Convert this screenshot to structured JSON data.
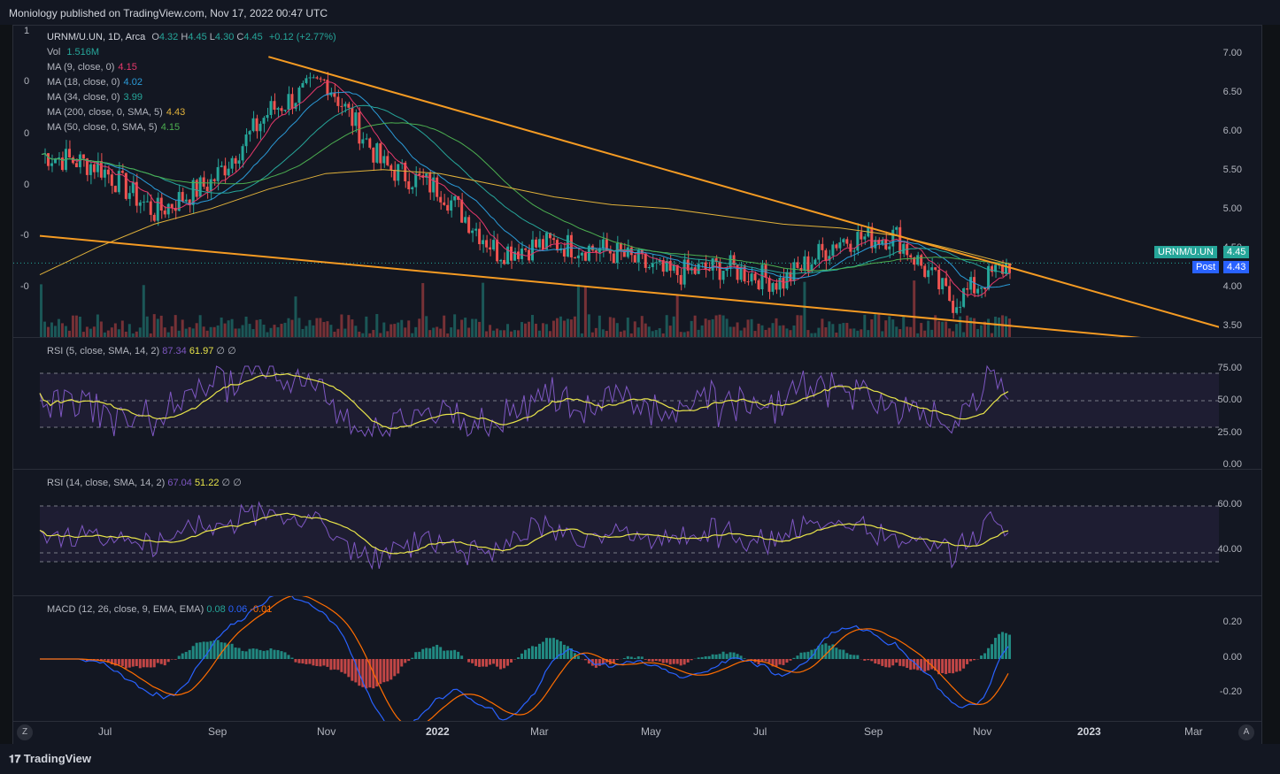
{
  "header": {
    "published": "Moniology published on TradingView.com, Nov 17, 2022 00:47 UTC"
  },
  "main": {
    "symbol_line": {
      "symbol": "URNM/U.UN, 1D, Arca",
      "o_label": "O",
      "o": "4.32",
      "h_label": "H",
      "h": "4.45",
      "l_label": "L",
      "l": "4.30",
      "c_label": "C",
      "c": "4.45",
      "change": "+0.12 (+2.77%)"
    },
    "vol": {
      "label": "Vol",
      "value": "1.516M"
    },
    "ma": [
      {
        "label": "MA (9, close, 0)",
        "value": "4.15",
        "color": "#e5386b"
      },
      {
        "label": "MA (18, close, 0)",
        "value": "4.02",
        "color": "#2b9bd8"
      },
      {
        "label": "MA (34, close, 0)",
        "value": "3.99",
        "color": "#26a69a"
      },
      {
        "label": "MA (200, close, 0, SMA, 5)",
        "value": "4.43",
        "color": "#e0b13a"
      },
      {
        "label": "MA (50, close, 0, SMA, 5)",
        "value": "4.15",
        "color": "#4caf50"
      }
    ],
    "price_ticks": [
      "7.00",
      "6.50",
      "6.00",
      "5.50",
      "5.00",
      "4.50",
      "4.00",
      "3.50"
    ],
    "left_labels": [
      "1",
      "0",
      "0",
      "0",
      "-0",
      "-0"
    ],
    "price_badge": {
      "symbol": "URNM/U.UN",
      "value": "4.45",
      "post_label": "Post",
      "post_value": "4.43"
    }
  },
  "rsi5": {
    "label": "RSI (5, close, SMA, 14, 2)",
    "v1": "87.34",
    "v2": "61.97",
    "v3": "∅",
    "v4": "∅",
    "ticks": [
      "75.00",
      "50.00",
      "25.00",
      "0.00"
    ]
  },
  "rsi14": {
    "label": "RSI (14, close, SMA, 14, 2)",
    "v1": "67.04",
    "v2": "51.22",
    "v3": "∅",
    "v4": "∅",
    "ticks": [
      "60.00",
      "40.00"
    ]
  },
  "macd": {
    "label": "MACD (12, 26, close, 9, EMA, EMA)",
    "v1": "0.08",
    "v2": "0.06",
    "v3": "-0.01",
    "ticks": [
      "0.20",
      "0.00",
      "-0.20"
    ]
  },
  "time_axis": [
    "Jul",
    "Sep",
    "Nov",
    "2022",
    "Mar",
    "May",
    "Jul",
    "Sep",
    "Nov",
    "2023",
    "Mar"
  ],
  "buttons": {
    "left": "Z",
    "right": "A"
  },
  "footer": {
    "brand": "TradingView"
  },
  "colors": {
    "up": "#26a69a",
    "down": "#ef5350",
    "trendline": "#f59b23",
    "rsi": "#7e57c2",
    "rsi_signal": "#e8e44a",
    "macd": "#2962ff",
    "signal": "#ff6d00",
    "bg": "#131722"
  },
  "chart_data": [
    {
      "type": "line",
      "title": "URNM/U.UN, 1D, Arca",
      "x": [
        "2021-06",
        "2021-07",
        "2021-08",
        "2021-09",
        "2021-10",
        "2021-11",
        "2021-12",
        "2022-01",
        "2022-02",
        "2022-03",
        "2022-04",
        "2022-05",
        "2022-06",
        "2022-07",
        "2022-08",
        "2022-09",
        "2022-10",
        "2022-11"
      ],
      "series": [
        {
          "name": "URNM/U.UN",
          "values": [
            5.85,
            5.7,
            5.1,
            5.5,
            6.4,
            6.8,
            5.7,
            5.4,
            4.6,
            4.7,
            4.6,
            4.3,
            4.4,
            4.2,
            4.75,
            4.8,
            3.95,
            4.45
          ]
        },
        {
          "name": "MA (200, close, 0, SMA, 5)",
          "values": [
            4.3,
            4.65,
            4.95,
            5.15,
            5.4,
            5.6,
            5.65,
            5.6,
            5.45,
            5.3,
            5.2,
            5.15,
            5.05,
            4.95,
            4.9,
            4.8,
            4.62,
            4.43
          ]
        }
      ],
      "ylim": [
        3.4,
        7.2
      ],
      "trendlines": [
        {
          "label": "upper",
          "from": [
            "2021-10",
            7.1
          ],
          "to": [
            "2023-03",
            3.55
          ]
        },
        {
          "label": "lower",
          "from": [
            "2021-06",
            4.8
          ],
          "to": [
            "2023-03",
            3.37
          ]
        }
      ]
    }
  ]
}
